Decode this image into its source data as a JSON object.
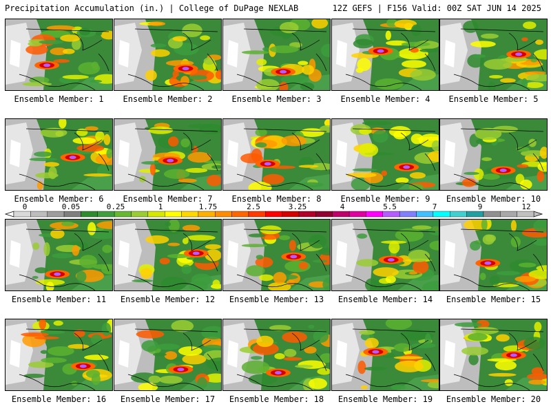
{
  "header": {
    "title_left": "Precipitation Accumulation (in.) | College of DuPage NEXLAB",
    "title_right": "12Z GEFS | F156 Valid: 00Z SAT JUN 14 2025"
  },
  "members": [
    {
      "label": "Ensemble Member: 1"
    },
    {
      "label": "Ensemble Member: 2"
    },
    {
      "label": "Ensemble Member: 3"
    },
    {
      "label": "Ensemble Member: 4"
    },
    {
      "label": "Ensemble Member: 5"
    },
    {
      "label": "Ensemble Member: 6"
    },
    {
      "label": "Ensemble Member: 7"
    },
    {
      "label": "Ensemble Member: 8"
    },
    {
      "label": "Ensemble Member: 9"
    },
    {
      "label": "Ensemble Member: 10"
    },
    {
      "label": "Ensemble Member: 11"
    },
    {
      "label": "Ensemble Member: 12"
    },
    {
      "label": "Ensemble Member: 13"
    },
    {
      "label": "Ensemble Member: 14"
    },
    {
      "label": "Ensemble Member: 15"
    },
    {
      "label": "Ensemble Member: 16"
    },
    {
      "label": "Ensemble Member: 17"
    },
    {
      "label": "Ensemble Member: 18"
    },
    {
      "label": "Ensemble Member: 19"
    },
    {
      "label": "Ensemble Member: 20"
    }
  ],
  "colorbar": {
    "tick_labels": [
      "0",
      "0.05",
      "0.25",
      "1",
      "1.75",
      "2.5",
      "3.25",
      "4",
      "5.5",
      "7",
      "9",
      "12"
    ],
    "colors": [
      "#d9d9d9",
      "#bdbdbd",
      "#9e9e9e",
      "#7f7f7f",
      "#2e8b2e",
      "#3f9f3f",
      "#66b832",
      "#9acd32",
      "#d4e800",
      "#ffff00",
      "#ffd800",
      "#ffb000",
      "#ff8c00",
      "#ff6600",
      "#ff3b00",
      "#ff0000",
      "#d40000",
      "#b0002a",
      "#900030",
      "#c0006a",
      "#e000a0",
      "#ff00ff",
      "#b45cff",
      "#8080ff",
      "#40c0ff",
      "#00ffff",
      "#40d0d0",
      "#20a0a0",
      "#909090",
      "#a8a8a8",
      "#c0c0c0"
    ]
  }
}
